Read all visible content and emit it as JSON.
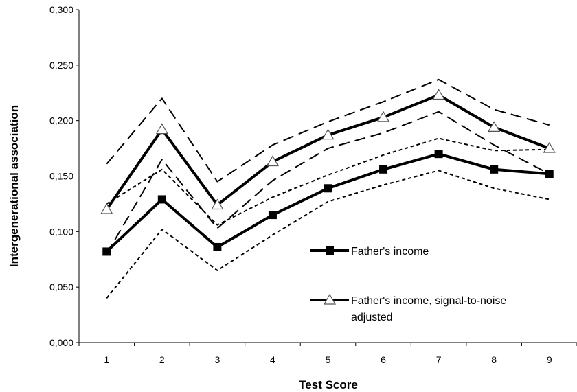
{
  "chart_data": {
    "type": "line",
    "title": "",
    "xlabel": "Test Score",
    "ylabel": "Intergenerational association",
    "x": [
      "1",
      "2",
      "3",
      "4",
      "5",
      "6",
      "7",
      "8",
      "9"
    ],
    "ylim": [
      0,
      0.3
    ],
    "yticks": [
      "0,000",
      "0,050",
      "0,100",
      "0,150",
      "0,200",
      "0,250",
      "0,300"
    ],
    "grid": false,
    "legend_position": "center-right",
    "series": [
      {
        "name": "Father's income",
        "marker": "filled-square",
        "style": "solid-thick",
        "values": [
          0.082,
          0.129,
          0.086,
          0.115,
          0.139,
          0.156,
          0.17,
          0.156,
          0.152
        ]
      },
      {
        "name": "Father's income, signal-to-noise adjusted",
        "marker": "open-triangle",
        "style": "solid-thick",
        "values": [
          0.12,
          0.192,
          0.124,
          0.163,
          0.187,
          0.203,
          0.223,
          0.194,
          0.175
        ]
      },
      {
        "name": "",
        "style": "short-dash",
        "values": [
          0.04,
          0.102,
          0.065,
          0.097,
          0.127,
          0.142,
          0.155,
          0.139,
          0.129
        ]
      },
      {
        "name": "",
        "style": "short-dash",
        "values": [
          0.125,
          0.156,
          0.106,
          0.131,
          0.151,
          0.169,
          0.184,
          0.173,
          0.174
        ]
      },
      {
        "name": "",
        "style": "long-dash",
        "values": [
          0.08,
          0.165,
          0.103,
          0.146,
          0.175,
          0.189,
          0.208,
          0.178,
          0.152
        ]
      },
      {
        "name": "",
        "style": "long-dash",
        "values": [
          0.161,
          0.22,
          0.145,
          0.178,
          0.199,
          0.217,
          0.237,
          0.21,
          0.196
        ]
      }
    ],
    "legend": [
      {
        "label": "Father's income",
        "marker": "filled-square"
      },
      {
        "label": "Father's income, signal-to-noise\nadjusted",
        "marker": "open-triangle"
      }
    ]
  }
}
